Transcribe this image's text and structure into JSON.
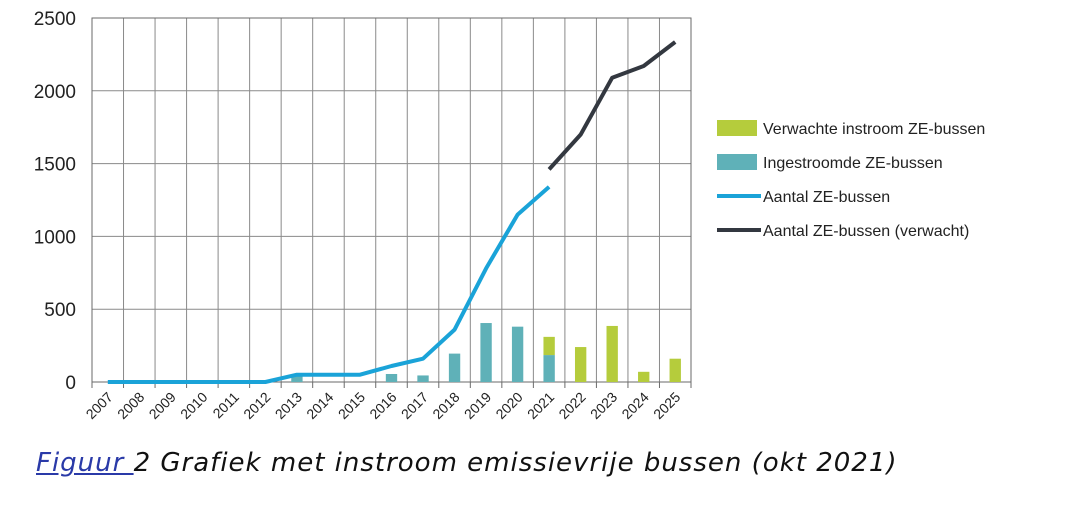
{
  "chart_data": {
    "type": "bar",
    "categories": [
      "2007",
      "2008",
      "2009",
      "2010",
      "2011",
      "2012",
      "2013",
      "2014",
      "2015",
      "2016",
      "2017",
      "2018",
      "2019",
      "2020",
      "2021",
      "2022",
      "2023",
      "2024",
      "2025"
    ],
    "ylim": [
      0,
      2500
    ],
    "y_ticks": [
      "0",
      "500",
      "1000",
      "1500",
      "2000",
      "2500"
    ],
    "grid": true,
    "legend_position": "right",
    "series": [
      {
        "name": "Verwachte instroom ZE-bussen",
        "kind": "bar",
        "color": "#b5cc3c",
        "values": [
          null,
          null,
          null,
          null,
          null,
          null,
          null,
          null,
          null,
          null,
          null,
          null,
          null,
          null,
          310,
          240,
          385,
          70,
          160
        ]
      },
      {
        "name": "Ingestroomde ZE-bussen",
        "kind": "bar",
        "color": "#5fb1b8",
        "values": [
          0,
          0,
          0,
          0,
          0,
          0,
          40,
          0,
          0,
          55,
          45,
          195,
          405,
          380,
          185,
          null,
          null,
          null,
          null
        ]
      },
      {
        "name": "Aantal ZE-bussen",
        "kind": "line",
        "color": "#1aa3d8",
        "values": [
          0,
          0,
          0,
          0,
          0,
          0,
          50,
          50,
          50,
          110,
          160,
          360,
          780,
          1150,
          1340,
          null,
          null,
          null,
          null
        ]
      },
      {
        "name": "Aantal ZE-bussen (verwacht)",
        "kind": "line",
        "color": "#333840",
        "values": [
          null,
          null,
          null,
          null,
          null,
          null,
          null,
          null,
          null,
          null,
          null,
          null,
          null,
          null,
          1460,
          1700,
          2090,
          2170,
          2335
        ]
      }
    ]
  },
  "caption": {
    "link_text": "Figuur ",
    "text": "2 Grafiek met instroom emissievrije bussen (okt 2021)"
  }
}
